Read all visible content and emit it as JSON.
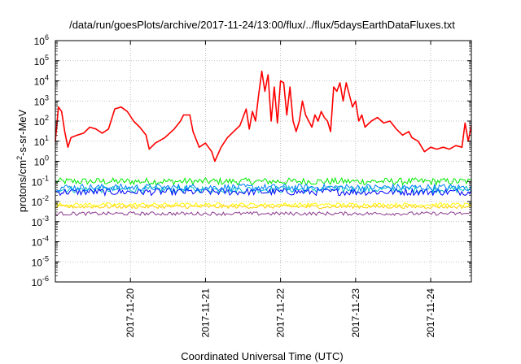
{
  "chart_data": {
    "type": "line",
    "title": "/data/run/goesPlots/archive/2017-11-24/13:00/flux/../flux/5daysEarthDataFluxes.txt",
    "xlabel": "Coordinated Universal Time (UTC)",
    "ylabel_parts": [
      "protons/cm",
      "2",
      "-s-sr-MeV"
    ],
    "x_range_days": [
      "2017-11-19T00:00",
      "2017-11-24T13:00"
    ],
    "x_ticks": [
      {
        "date": "2017-11-20T00:00",
        "label": "2017-11-20"
      },
      {
        "date": "2017-11-21T00:00",
        "label": "2017-11-21"
      },
      {
        "date": "2017-11-22T00:00",
        "label": "2017-11-22"
      },
      {
        "date": "2017-11-23T00:00",
        "label": "2017-11-23"
      },
      {
        "date": "2017-11-24T00:00",
        "label": "2017-11-24"
      }
    ],
    "y_scale": "log",
    "ylim": [
      1e-06,
      1000000.0
    ],
    "y_ticks": [
      {
        "value": 1e-06,
        "base": "10",
        "exp": "-6"
      },
      {
        "value": 1e-05,
        "base": "10",
        "exp": "-5"
      },
      {
        "value": 0.0001,
        "base": "10",
        "exp": "-4"
      },
      {
        "value": 0.001,
        "base": "10",
        "exp": "-3"
      },
      {
        "value": 0.01,
        "base": "10",
        "exp": "-2"
      },
      {
        "value": 0.1,
        "base": "10",
        "exp": "-1"
      },
      {
        "value": 1,
        "base": "10",
        "exp": "0"
      },
      {
        "value": 10,
        "base": "10",
        "exp": "1"
      },
      {
        "value": 100,
        "base": "10",
        "exp": "2"
      },
      {
        "value": 1000,
        "base": "10",
        "exp": "3"
      },
      {
        "value": 10000,
        "base": "10",
        "exp": "4"
      },
      {
        "value": 100000,
        "base": "10",
        "exp": "5"
      },
      {
        "value": 1000000,
        "base": "10",
        "exp": "6"
      }
    ],
    "grid": true,
    "series": [
      {
        "color": "#ff0000",
        "points": [
          [
            "2017-11-19T00:00",
            10
          ],
          [
            "2017-11-19T01:00",
            500
          ],
          [
            "2017-11-19T02:00",
            300
          ],
          [
            "2017-11-19T03:00",
            30
          ],
          [
            "2017-11-19T04:00",
            5
          ],
          [
            "2017-11-19T05:00",
            15
          ],
          [
            "2017-11-19T07:00",
            20
          ],
          [
            "2017-11-19T09:00",
            25
          ],
          [
            "2017-11-19T11:00",
            50
          ],
          [
            "2017-11-19T13:00",
            40
          ],
          [
            "2017-11-19T15:00",
            25
          ],
          [
            "2017-11-19T17:00",
            40
          ],
          [
            "2017-11-19T19:00",
            400
          ],
          [
            "2017-11-19T21:00",
            500
          ],
          [
            "2017-11-19T23:00",
            300
          ],
          [
            "2017-11-20T01:00",
            100
          ],
          [
            "2017-11-20T03:00",
            50
          ],
          [
            "2017-11-20T05:00",
            20
          ],
          [
            "2017-11-20T06:00",
            4
          ],
          [
            "2017-11-20T08:00",
            8
          ],
          [
            "2017-11-20T11:00",
            15
          ],
          [
            "2017-11-20T14:00",
            40
          ],
          [
            "2017-11-20T16:00",
            100
          ],
          [
            "2017-11-20T17:00",
            200
          ],
          [
            "2017-11-20T19:00",
            200
          ],
          [
            "2017-11-20T20:00",
            30
          ],
          [
            "2017-11-20T22:00",
            5
          ],
          [
            "2017-11-21T00:00",
            8
          ],
          [
            "2017-11-21T02:00",
            3
          ],
          [
            "2017-11-21T03:00",
            1
          ],
          [
            "2017-11-21T05:00",
            5
          ],
          [
            "2017-11-21T07:00",
            15
          ],
          [
            "2017-11-21T09:00",
            30
          ],
          [
            "2017-11-21T11:00",
            60
          ],
          [
            "2017-11-21T13:00",
            400
          ],
          [
            "2017-11-21T14:00",
            40
          ],
          [
            "2017-11-21T15:00",
            300
          ],
          [
            "2017-11-21T16:00",
            100
          ],
          [
            "2017-11-21T17:00",
            2000
          ],
          [
            "2017-11-21T18:00",
            30000
          ],
          [
            "2017-11-21T19:00",
            3000
          ],
          [
            "2017-11-21T20:00",
            20000
          ],
          [
            "2017-11-21T21:00",
            100
          ],
          [
            "2017-11-21T22:00",
            5000
          ],
          [
            "2017-11-21T23:00",
            80
          ],
          [
            "2017-11-22T00:00",
            10000
          ],
          [
            "2017-11-22T01:00",
            8000
          ],
          [
            "2017-11-22T02:00",
            200
          ],
          [
            "2017-11-22T03:00",
            5000
          ],
          [
            "2017-11-22T04:00",
            100
          ],
          [
            "2017-11-22T05:00",
            30
          ],
          [
            "2017-11-22T06:00",
            100
          ],
          [
            "2017-11-22T07:00",
            1000
          ],
          [
            "2017-11-22T08:00",
            200
          ],
          [
            "2017-11-22T09:00",
            100
          ],
          [
            "2017-11-22T10:00",
            50
          ],
          [
            "2017-11-22T11:00",
            200
          ],
          [
            "2017-11-22T12:00",
            100
          ],
          [
            "2017-11-22T13:00",
            300
          ],
          [
            "2017-11-22T14:00",
            150
          ],
          [
            "2017-11-22T15:00",
            100
          ],
          [
            "2017-11-22T16:00",
            30
          ],
          [
            "2017-11-22T17:00",
            5000
          ],
          [
            "2017-11-22T18:00",
            3000
          ],
          [
            "2017-11-22T19:00",
            8000
          ],
          [
            "2017-11-22T20:00",
            1000
          ],
          [
            "2017-11-22T21:00",
            8000
          ],
          [
            "2017-11-22T22:00",
            2000
          ],
          [
            "2017-11-22T23:00",
            500
          ],
          [
            "2017-11-23T00:00",
            1000
          ],
          [
            "2017-11-23T01:00",
            100
          ],
          [
            "2017-11-23T02:00",
            200
          ],
          [
            "2017-11-23T03:00",
            50
          ],
          [
            "2017-11-23T05:00",
            100
          ],
          [
            "2017-11-23T07:00",
            150
          ],
          [
            "2017-11-23T09:00",
            80
          ],
          [
            "2017-11-23T11:00",
            100
          ],
          [
            "2017-11-23T13:00",
            40
          ],
          [
            "2017-11-23T15:00",
            20
          ],
          [
            "2017-11-23T17:00",
            30
          ],
          [
            "2017-11-23T18:00",
            15
          ],
          [
            "2017-11-23T20:00",
            10
          ],
          [
            "2017-11-23T22:00",
            3
          ],
          [
            "2017-11-24T00:00",
            5
          ],
          [
            "2017-11-24T02:00",
            4
          ],
          [
            "2017-11-24T04:00",
            5
          ],
          [
            "2017-11-24T06:00",
            4
          ],
          [
            "2017-11-24T08:00",
            6
          ],
          [
            "2017-11-24T10:00",
            5
          ],
          [
            "2017-11-24T11:00",
            80
          ],
          [
            "2017-11-24T12:00",
            10
          ],
          [
            "2017-11-24T13:00",
            60
          ]
        ]
      },
      {
        "color": "#00ee00",
        "approx_level": 0.1
      },
      {
        "color": "#00c0c0",
        "approx_level": 0.04
      },
      {
        "color": "#0000ff",
        "approx_level": 0.03
      },
      {
        "color": "#0080ff",
        "approx_level": 0.05
      },
      {
        "color": "#ffff00",
        "approx_level": 0.007
      },
      {
        "color": "#ffd000",
        "approx_level": 0.0055
      },
      {
        "color": "#8b3a8b",
        "approx_level": 0.0025
      }
    ]
  }
}
